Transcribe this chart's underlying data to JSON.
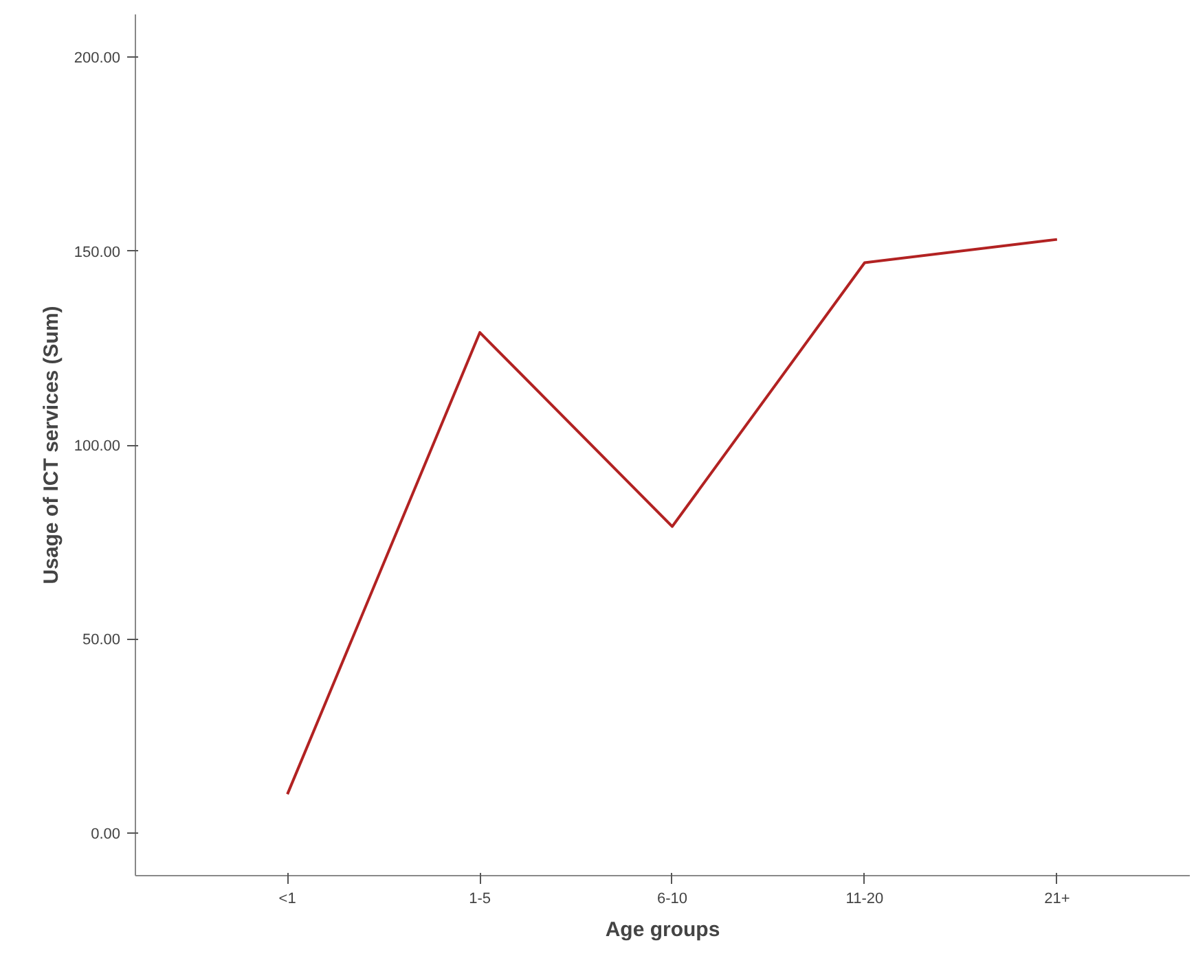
{
  "chart_data": {
    "type": "line",
    "xlabel": "Age groups",
    "ylabel": "Usage of ICT services (Sum)",
    "categories": [
      "<1",
      "1-5",
      "6-10",
      "11-20",
      "21+"
    ],
    "series": [
      {
        "color": "#b22222",
        "values": [
          10,
          129,
          79,
          147,
          153
        ]
      }
    ],
    "ylim": [
      -11,
      211
    ],
    "yticks": [
      {
        "value": 0,
        "label": "0.00"
      },
      {
        "value": 50,
        "label": "50.00"
      },
      {
        "value": 100,
        "label": "100.00"
      },
      {
        "value": 150,
        "label": "150.00"
      },
      {
        "value": 200,
        "label": "200.00"
      }
    ],
    "grid": false,
    "marker": "none",
    "line_style": "solid"
  }
}
